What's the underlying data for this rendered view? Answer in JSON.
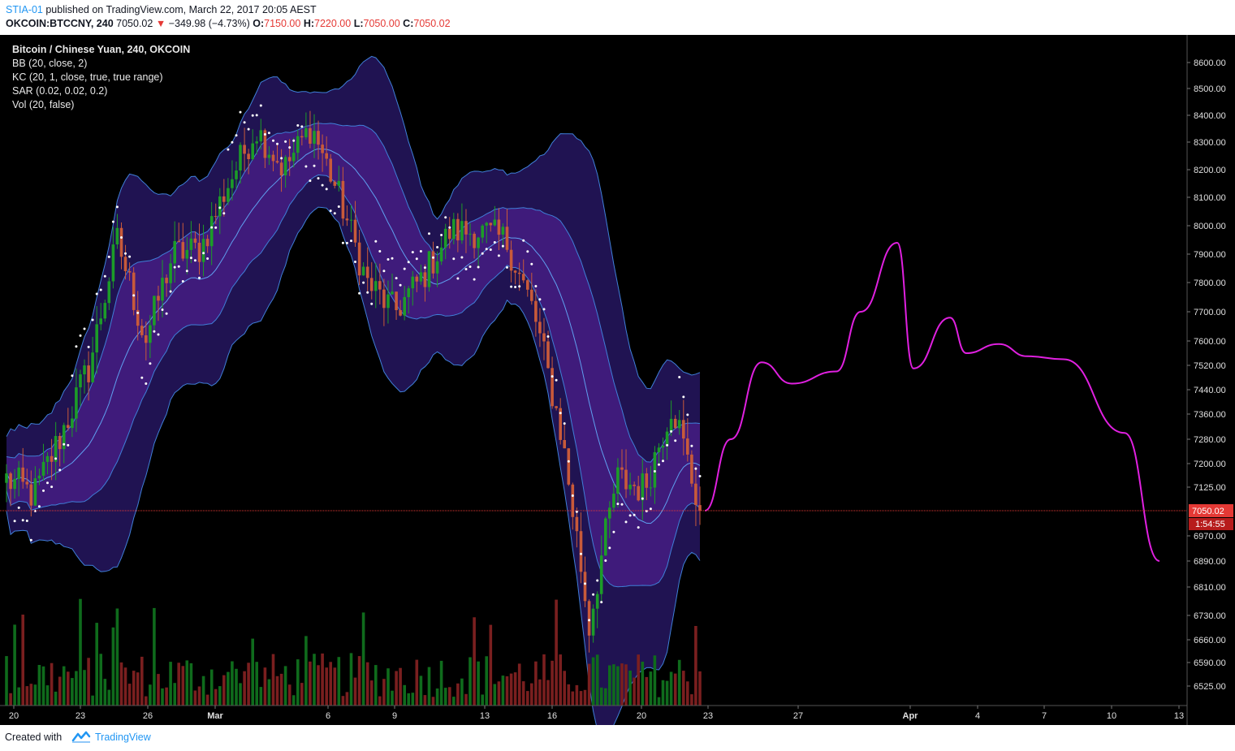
{
  "header": {
    "author": "STIA-01",
    "published_text": "published on TradingView.com, March 22, 2017 20:05 AEST",
    "symbol": "OKCOIN:BTCCNY, 240",
    "last": "7050.02",
    "down_arrow": "▼",
    "change": "−349.98 (−4.73%)",
    "o_label": "O:",
    "o_value": "7150.00",
    "h_label": "H:",
    "h_value": "7220.00",
    "l_label": "L:",
    "l_value": "7050.00",
    "c_label": "C:",
    "c_value": "7050.02"
  },
  "legend": {
    "title": "Bitcoin / Chinese Yuan, 240, OKCOIN",
    "bb": "BB (20, close, 2)",
    "kc": "KC (20, 1, close, true, true range)",
    "sar": "SAR (0.02, 0.02, 0.2)",
    "vol": "Vol (20, false)"
  },
  "footer": {
    "created": "Created with",
    "brand": "TradingView"
  },
  "colors": {
    "background": "#000000",
    "up": "#1c9c28",
    "down": "#c85a3a",
    "vol_up": "#0f6b1c",
    "vol_down": "#7a1f1f",
    "bb_fill": "#2b1a6e",
    "bb_line": "#3f7fd8",
    "kc_fill": "#4a1f8a",
    "sar": "#ffffff",
    "projection": "#e020e0",
    "price_line": "#e53935",
    "axis_text": "#e0e0e0"
  },
  "chart_data": {
    "type": "candlestick",
    "title": "Bitcoin / Chinese Yuan, 240, OKCOIN",
    "y_ticks": [
      8600,
      8500,
      8400,
      8300,
      8200,
      8100,
      8000,
      7900,
      7800,
      7700,
      7600,
      7520,
      7440,
      7360,
      7280,
      7200,
      7125,
      6970,
      6890,
      6810,
      6730,
      6660,
      6590,
      6525
    ],
    "y_tick_labels": [
      "8600.00",
      "8500.00",
      "8400.00",
      "8300.00",
      "8200.00",
      "8100.00",
      "8000.00",
      "7900.00",
      "7800.00",
      "7700.00",
      "7600.00",
      "7520.00",
      "7440.00",
      "7360.00",
      "7280.00",
      "7200.00",
      "7125.00",
      "6970.00",
      "6890.00",
      "6810.00",
      "6730.00",
      "6660.00",
      "6590.00",
      "6525.00"
    ],
    "x_ticks": [
      "20",
      "23",
      "26",
      "Mar",
      "6",
      "9",
      "13",
      "16",
      "20",
      "23",
      "27",
      "Apr",
      "4",
      "7",
      "10",
      "13"
    ],
    "last_price": 7050.02,
    "last_price_label": "7050.02",
    "countdown_label": "1:54:55",
    "grid": false,
    "ohlc_anchor_closes": [
      7150,
      7100,
      7300,
      7520,
      7950,
      7600,
      7900,
      7920,
      8150,
      8350,
      8200,
      8360,
      8100,
      7800,
      7700,
      7820,
      7980,
      7980,
      7950,
      7700,
      7300,
      6700,
      7150,
      7120,
      7400,
      7050.02
    ],
    "projection_path_prices": [
      7050,
      7280,
      7530,
      7460,
      7500,
      7700,
      7940,
      7510,
      7680,
      7560,
      7590,
      7550,
      7540,
      7300,
      6890
    ]
  }
}
